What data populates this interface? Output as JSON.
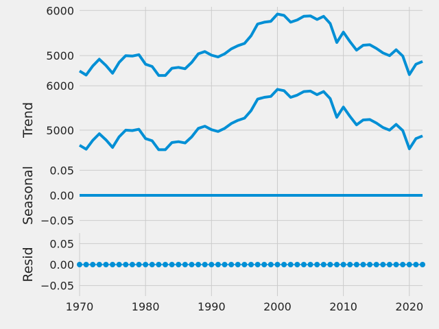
{
  "chart_data": [
    {
      "type": "line",
      "title": "",
      "xlabel": "",
      "ylabel": "",
      "xlim": [
        1970,
        2022
      ],
      "ylim": [
        4380,
        6080
      ],
      "yticks": [
        "5000",
        "6000"
      ],
      "ytick_values": [
        5000,
        6000
      ],
      "xticks": [
        "1980",
        "1990",
        "2000",
        "2010",
        "2020"
      ],
      "xtick_values": [
        1980,
        1990,
        2000,
        2010,
        2020
      ],
      "show_xtick_labels": false,
      "color": "#008fd5",
      "x": [
        1970,
        1971,
        1972,
        1973,
        1974,
        1975,
        1976,
        1977,
        1978,
        1979,
        1980,
        1981,
        1982,
        1983,
        1984,
        1985,
        1986,
        1987,
        1988,
        1989,
        1990,
        1991,
        1992,
        1993,
        1994,
        1995,
        1996,
        1997,
        1998,
        1999,
        2000,
        2001,
        2002,
        2003,
        2004,
        2005,
        2006,
        2007,
        2008,
        2009,
        2010,
        2011,
        2012,
        2013,
        2014,
        2015,
        2016,
        2017,
        2018,
        2019,
        2020,
        2021,
        2022
      ],
      "y": [
        4660,
        4570,
        4770,
        4920,
        4780,
        4610,
        4850,
        5000,
        4990,
        5020,
        4810,
        4760,
        4560,
        4560,
        4720,
        4740,
        4710,
        4850,
        5040,
        5090,
        5010,
        4970,
        5040,
        5150,
        5220,
        5270,
        5440,
        5700,
        5740,
        5760,
        5920,
        5890,
        5740,
        5790,
        5870,
        5880,
        5800,
        5870,
        5710,
        5290,
        5520,
        5310,
        5120,
        5230,
        5240,
        5160,
        5060,
        5000,
        5130,
        4990,
        4580,
        4810,
        4870
      ]
    },
    {
      "type": "line",
      "title": "",
      "xlabel": "",
      "ylabel": "Trend",
      "xlim": [
        1970,
        2022
      ],
      "ylim": [
        4380,
        6080
      ],
      "yticks": [
        "5000",
        "6000"
      ],
      "ytick_values": [
        5000,
        6000
      ],
      "xticks": [
        "1980",
        "1990",
        "2000",
        "2010",
        "2020"
      ],
      "xtick_values": [
        1980,
        1990,
        2000,
        2010,
        2020
      ],
      "show_xtick_labels": false,
      "color": "#008fd5",
      "x": [
        1970,
        1971,
        1972,
        1973,
        1974,
        1975,
        1976,
        1977,
        1978,
        1979,
        1980,
        1981,
        1982,
        1983,
        1984,
        1985,
        1986,
        1987,
        1988,
        1989,
        1990,
        1991,
        1992,
        1993,
        1994,
        1995,
        1996,
        1997,
        1998,
        1999,
        2000,
        2001,
        2002,
        2003,
        2004,
        2005,
        2006,
        2007,
        2008,
        2009,
        2010,
        2011,
        2012,
        2013,
        2014,
        2015,
        2016,
        2017,
        2018,
        2019,
        2020,
        2021,
        2022
      ],
      "y": [
        4660,
        4570,
        4770,
        4920,
        4780,
        4610,
        4850,
        5000,
        4990,
        5020,
        4810,
        4760,
        4560,
        4560,
        4720,
        4740,
        4710,
        4850,
        5040,
        5090,
        5010,
        4970,
        5040,
        5150,
        5220,
        5270,
        5440,
        5700,
        5740,
        5760,
        5920,
        5890,
        5740,
        5790,
        5870,
        5880,
        5800,
        5870,
        5710,
        5290,
        5520,
        5310,
        5120,
        5230,
        5240,
        5160,
        5060,
        5000,
        5130,
        4990,
        4580,
        4810,
        4870
      ]
    },
    {
      "type": "line",
      "title": "",
      "xlabel": "",
      "ylabel": "Seasonal",
      "xlim": [
        1970,
        2022
      ],
      "ylim": [
        -0.075,
        0.075
      ],
      "yticks": [
        "0.05",
        "0.00",
        "−0.05"
      ],
      "ytick_values": [
        0.05,
        0.0,
        -0.05
      ],
      "xticks": [
        "1980",
        "1990",
        "2000",
        "2010",
        "2020"
      ],
      "xtick_values": [
        1980,
        1990,
        2000,
        2010,
        2020
      ],
      "show_xtick_labels": false,
      "color": "#008fd5",
      "x": [
        1970,
        2022
      ],
      "y": [
        0,
        0
      ]
    },
    {
      "type": "scatter",
      "title": "",
      "xlabel": "",
      "ylabel": "Resid",
      "xlim": [
        1970,
        2022
      ],
      "ylim": [
        -0.075,
        0.075
      ],
      "yticks": [
        "0.05",
        "0.00",
        "−0.05"
      ],
      "ytick_values": [
        0.05,
        0.0,
        -0.05
      ],
      "xticks": [
        "1970",
        "1980",
        "1990",
        "2000",
        "2010",
        "2020"
      ],
      "xtick_values": [
        1970,
        1980,
        1990,
        2000,
        2010,
        2020
      ],
      "show_xtick_labels": true,
      "color": "#008fd5",
      "baseline": 0,
      "x": [
        1970,
        1971,
        1972,
        1973,
        1974,
        1975,
        1976,
        1977,
        1978,
        1979,
        1980,
        1981,
        1982,
        1983,
        1984,
        1985,
        1986,
        1987,
        1988,
        1989,
        1990,
        1991,
        1992,
        1993,
        1994,
        1995,
        1996,
        1997,
        1998,
        1999,
        2000,
        2001,
        2002,
        2003,
        2004,
        2005,
        2006,
        2007,
        2008,
        2009,
        2010,
        2011,
        2012,
        2013,
        2014,
        2015,
        2016,
        2017,
        2018,
        2019,
        2020,
        2021,
        2022
      ],
      "y": [
        0,
        0,
        0,
        0,
        0,
        0,
        0,
        0,
        0,
        0,
        0,
        0,
        0,
        0,
        0,
        0,
        0,
        0,
        0,
        0,
        0,
        0,
        0,
        0,
        0,
        0,
        0,
        0,
        0,
        0,
        0,
        0,
        0,
        0,
        0,
        0,
        0,
        0,
        0,
        0,
        0,
        0,
        0,
        0,
        0,
        0,
        0,
        0,
        0,
        0,
        0,
        0,
        0
      ]
    }
  ]
}
